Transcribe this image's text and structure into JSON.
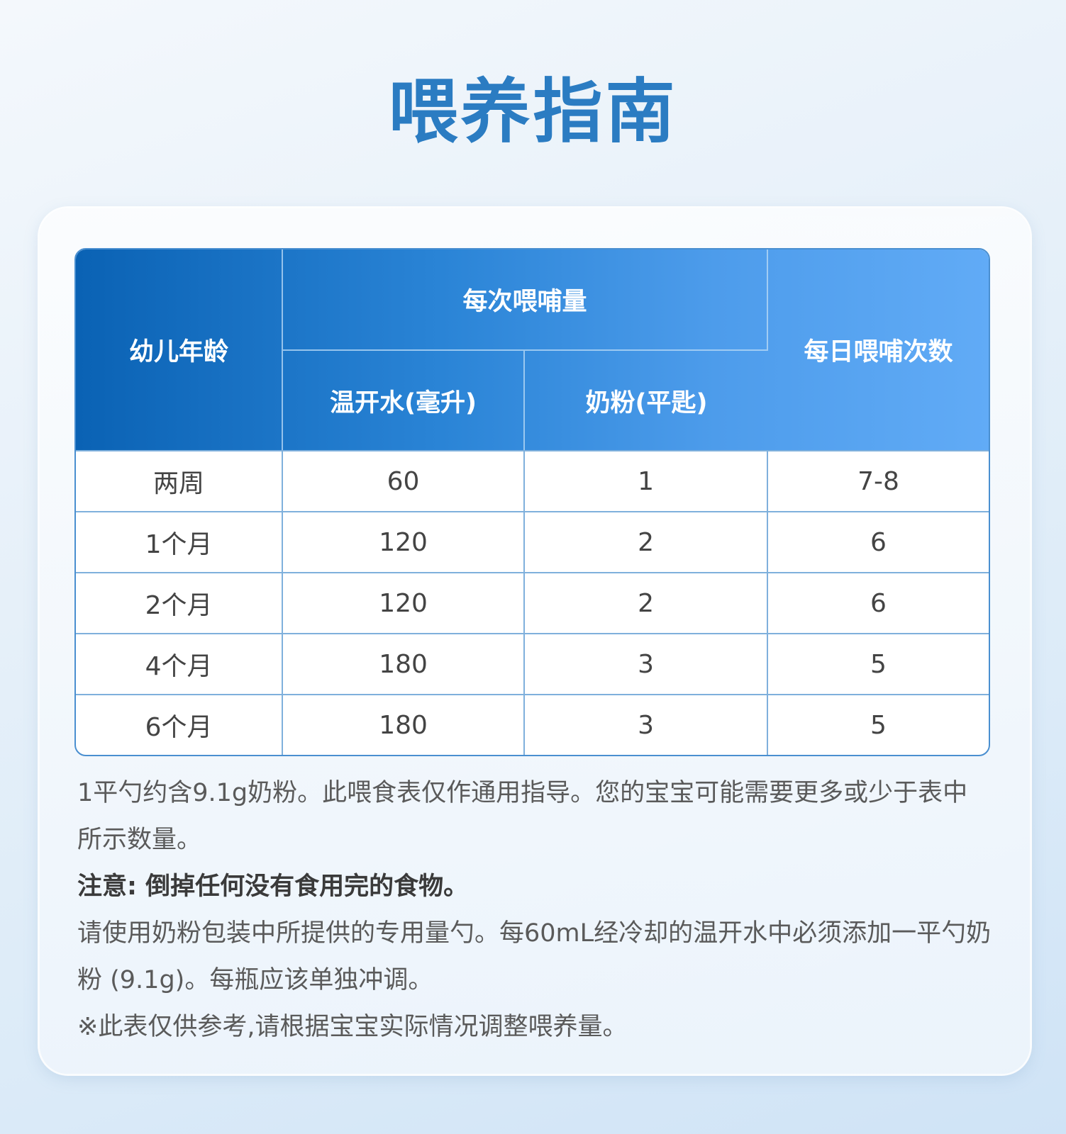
{
  "title": "喂养指南",
  "table": {
    "headers": {
      "age": "幼儿年龄",
      "per_feed": "每次喂哺量",
      "water": "温开水(毫升)",
      "powder": "奶粉(平匙)",
      "daily": "每日喂哺次数"
    },
    "rows": [
      {
        "age": "两周",
        "water": "60",
        "powder": "1",
        "daily": "7-8"
      },
      {
        "age": "1个月",
        "water": "120",
        "powder": "2",
        "daily": "6"
      },
      {
        "age": "2个月",
        "water": "120",
        "powder": "2",
        "daily": "6"
      },
      {
        "age": "4个月",
        "water": "180",
        "powder": "3",
        "daily": "5"
      },
      {
        "age": "6个月",
        "water": "180",
        "powder": "3",
        "daily": "5"
      }
    ]
  },
  "notes": [
    "1平勺约含9.1g奶粉。此喂食表仅作通用指导。您的宝宝可能需要更多或少于表中所示数量。",
    "注意: 倒掉任何没有食用完的食物。",
    "请使用奶粉包装中所提供的专用量勺。每60mL经冷却的温开水中必须添加一平勺奶粉 (9.1g)。每瓶应该单独冲调。",
    "※此表仅供参考,请根据宝宝实际情况调整喂养量。"
  ],
  "colors": {
    "title": "#2b7cc2",
    "header_start": "#0a62b4",
    "header_end": "#61abf6",
    "border": "#7fb0dc"
  }
}
